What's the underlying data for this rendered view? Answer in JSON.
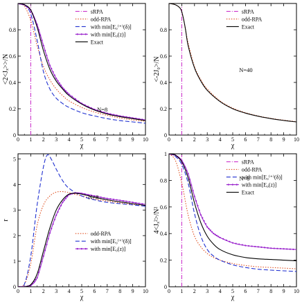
{
  "figure": {
    "background": "#ffffff"
  },
  "chart_data": [
    {
      "id": "tl",
      "type": "line",
      "ylabel": "<2<Jₓ>>/N",
      "xlabel": "χ",
      "xlim": [
        0,
        10
      ],
      "ylim": [
        0,
        1
      ],
      "xticks": [
        "0",
        "1",
        "2",
        "3",
        "4",
        "5",
        "6",
        "7",
        "8",
        "9",
        "10"
      ],
      "yticks": [
        "0",
        "0.2",
        "0.4",
        "0.6",
        "0.8"
      ],
      "ytick_values": [
        0,
        0.2,
        0.4,
        0.6,
        0.8
      ],
      "annotation": "N=8",
      "legend_position": "top-right",
      "series": [
        {
          "name": "sRPA",
          "color": "#cc33cc",
          "dash": "6,2,1,2",
          "marker": false,
          "x": [
            1,
            1
          ],
          "y": [
            0,
            0.99
          ]
        },
        {
          "name": "odd-RPA",
          "color": "#e05020",
          "dash": "1.5,2",
          "marker": false,
          "x": [
            0,
            0.5,
            1,
            1.5,
            2,
            2.5,
            3,
            3.5,
            4,
            5,
            6,
            7,
            8,
            9,
            10
          ],
          "y": [
            1,
            0.98,
            0.87,
            0.68,
            0.52,
            0.42,
            0.35,
            0.3,
            0.26,
            0.21,
            0.175,
            0.15,
            0.13,
            0.115,
            0.105
          ]
        },
        {
          "name": "with min[E₀⁽⁺⁾(δ)]",
          "color": "#2030d0",
          "dash": "6,3",
          "marker": false,
          "x": [
            0,
            0.5,
            1,
            1.5,
            2,
            2.5,
            3,
            3.5,
            4,
            5,
            6,
            7,
            8,
            9,
            10
          ],
          "y": [
            1,
            0.99,
            0.92,
            0.72,
            0.48,
            0.35,
            0.28,
            0.24,
            0.21,
            0.17,
            0.145,
            0.125,
            0.11,
            0.1,
            0.09
          ]
        },
        {
          "name": "with min[E₀(z)]",
          "color": "#9922cc",
          "dash": "",
          "marker": true,
          "x": [
            0,
            0.5,
            1,
            1.5,
            2,
            2.5,
            3,
            3.5,
            4,
            5,
            6,
            7,
            8,
            9,
            10
          ],
          "y": [
            1,
            0.99,
            0.95,
            0.84,
            0.68,
            0.53,
            0.43,
            0.36,
            0.31,
            0.24,
            0.195,
            0.165,
            0.145,
            0.13,
            0.115
          ]
        },
        {
          "name": "Exact",
          "color": "#000000",
          "dash": "",
          "marker": false,
          "x": [
            0,
            0.5,
            1,
            1.5,
            2,
            2.5,
            3,
            3.5,
            4,
            5,
            6,
            7,
            8,
            9,
            10
          ],
          "y": [
            1,
            0.99,
            0.95,
            0.82,
            0.64,
            0.5,
            0.41,
            0.35,
            0.3,
            0.235,
            0.19,
            0.16,
            0.14,
            0.125,
            0.11
          ]
        }
      ]
    },
    {
      "id": "tr",
      "type": "line",
      "ylabel": "<-2J₀>/N",
      "xlabel": "χ",
      "xlim": [
        0,
        10
      ],
      "ylim": [
        0,
        1
      ],
      "xticks": [
        "0",
        "1",
        "2",
        "3",
        "4",
        "5",
        "6",
        "7",
        "8",
        "9",
        "10"
      ],
      "yticks": [
        "0",
        "0.2",
        "0.4",
        "0.6",
        "0.8"
      ],
      "ytick_values": [
        0,
        0.2,
        0.4,
        0.6,
        0.8
      ],
      "annotation": "N=40",
      "legend_position": "top-right",
      "series": [
        {
          "name": "sRPA",
          "color": "#cc33cc",
          "dash": "6,2,1,2",
          "marker": false,
          "x": [
            1,
            1
          ],
          "y": [
            0,
            0.98
          ]
        },
        {
          "name": "odd-RPA",
          "color": "#e05020",
          "dash": "1.5,2",
          "marker": false,
          "x": [
            0,
            0.5,
            0.9,
            1.1,
            1.3,
            1.5,
            2,
            2.5,
            3,
            4,
            5,
            6,
            7,
            8,
            9,
            10
          ],
          "y": [
            1,
            0.99,
            0.96,
            0.9,
            0.8,
            0.7,
            0.52,
            0.42,
            0.35,
            0.26,
            0.205,
            0.17,
            0.145,
            0.127,
            0.113,
            0.102
          ]
        },
        {
          "name": "Exact",
          "color": "#000000",
          "dash": "",
          "marker": false,
          "x": [
            0,
            0.5,
            0.9,
            1.1,
            1.3,
            1.5,
            2,
            2.5,
            3,
            4,
            5,
            6,
            7,
            8,
            9,
            10
          ],
          "y": [
            1,
            0.99,
            0.96,
            0.9,
            0.8,
            0.68,
            0.51,
            0.41,
            0.34,
            0.255,
            0.2,
            0.167,
            0.143,
            0.125,
            0.111,
            0.1
          ]
        }
      ]
    },
    {
      "id": "bl",
      "type": "line",
      "ylabel": "r",
      "xlabel": "χ",
      "xlim": [
        0,
        10
      ],
      "ylim": [
        0,
        5.2
      ],
      "xticks": [
        "0",
        "1",
        "2",
        "3",
        "4",
        "5",
        "6",
        "7",
        "8",
        "9",
        "10"
      ],
      "yticks": [
        "0",
        "1",
        "2",
        "3",
        "4",
        "5"
      ],
      "ytick_values": [
        0,
        1,
        2,
        3,
        4,
        5
      ],
      "annotation": "N=8",
      "legend_position": "bottom-right",
      "series": [
        {
          "name": "odd-RPA",
          "color": "#e05020",
          "dash": "1.5,2",
          "marker": false,
          "x": [
            0,
            0.5,
            1,
            1.5,
            2,
            2.5,
            3,
            3.5,
            4,
            5,
            6,
            7,
            8,
            9,
            10
          ],
          "y": [
            0,
            0.1,
            0.9,
            2.4,
            3.2,
            3.55,
            3.7,
            3.72,
            3.68,
            3.55,
            3.43,
            3.35,
            3.28,
            3.22,
            3.18
          ]
        },
        {
          "name": "with min[E₀⁽⁺⁾(δ)]",
          "color": "#2030d0",
          "dash": "6,3",
          "marker": false,
          "x": [
            0,
            0.5,
            1,
            1.5,
            2,
            2.3,
            2.6,
            3,
            3.5,
            4,
            5,
            6,
            7,
            8,
            9,
            10
          ],
          "y": [
            0,
            0.1,
            1.2,
            3.2,
            4.7,
            5.15,
            5.0,
            4.6,
            4.15,
            3.85,
            3.55,
            3.4,
            3.3,
            3.25,
            3.2,
            3.15
          ]
        },
        {
          "name": "with min[E₀(z)]",
          "color": "#9922cc",
          "dash": "",
          "marker": true,
          "x": [
            0,
            0.5,
            1,
            1.5,
            2,
            2.5,
            3,
            3.5,
            4,
            4.5,
            5,
            6,
            7,
            8,
            9,
            10
          ],
          "y": [
            0,
            0,
            0.05,
            0.35,
            1.2,
            2.1,
            2.8,
            3.3,
            3.6,
            3.67,
            3.65,
            3.55,
            3.45,
            3.38,
            3.3,
            3.22
          ]
        },
        {
          "name": "Exact",
          "color": "#000000",
          "dash": "",
          "marker": false,
          "x": [
            0,
            0.5,
            1,
            1.5,
            2,
            2.5,
            3,
            3.5,
            4,
            4.5,
            5,
            6,
            7,
            8,
            9,
            10
          ],
          "y": [
            0,
            0,
            0.08,
            0.5,
            1.4,
            2.3,
            3.0,
            3.4,
            3.62,
            3.66,
            3.62,
            3.5,
            3.4,
            3.32,
            3.25,
            3.18
          ]
        }
      ]
    },
    {
      "id": "br",
      "type": "line",
      "ylabel": "4<Jₓ²>/N²",
      "xlabel": "χ",
      "xlim": [
        0,
        10
      ],
      "ylim": [
        0,
        1
      ],
      "xticks": [
        "0",
        "1",
        "2",
        "3",
        "4",
        "5",
        "6",
        "7",
        "8",
        "9",
        "10"
      ],
      "yticks": [
        "0",
        "0.2",
        "0.4",
        "0.6",
        "0.8",
        "1"
      ],
      "ytick_values": [
        0,
        0.2,
        0.4,
        0.6,
        0.8,
        1
      ],
      "annotation": "N=8",
      "legend_position": "top-right",
      "series": [
        {
          "name": "sRPA",
          "color": "#cc33cc",
          "dash": "6,2,1,2",
          "marker": false,
          "x": [
            1,
            1
          ],
          "y": [
            0,
            0.99
          ]
        },
        {
          "name": "odd-RPA",
          "color": "#e05020",
          "dash": "1.5,2",
          "marker": false,
          "x": [
            0,
            0.5,
            1,
            1.5,
            2,
            2.5,
            3,
            3.5,
            4,
            5,
            6,
            7,
            8,
            9,
            10
          ],
          "y": [
            1,
            0.95,
            0.78,
            0.54,
            0.38,
            0.3,
            0.25,
            0.22,
            0.2,
            0.175,
            0.16,
            0.15,
            0.145,
            0.14,
            0.135
          ]
        },
        {
          "name": "with min[E₀⁽⁺⁾(δ)]",
          "color": "#2030d0",
          "dash": "6,3",
          "marker": false,
          "x": [
            0,
            0.5,
            1,
            1.5,
            2,
            2.5,
            3,
            3.5,
            4,
            5,
            6,
            7,
            8,
            9,
            10
          ],
          "y": [
            1,
            0.98,
            0.92,
            0.78,
            0.55,
            0.38,
            0.28,
            0.23,
            0.2,
            0.165,
            0.145,
            0.132,
            0.125,
            0.12,
            0.115
          ]
        },
        {
          "name": "with min[E₀(z)]",
          "color": "#9922cc",
          "dash": "",
          "marker": true,
          "x": [
            0,
            0.5,
            1,
            1.5,
            2,
            2.5,
            3,
            3.5,
            4,
            5,
            6,
            7,
            8,
            9,
            10
          ],
          "y": [
            1,
            0.99,
            0.95,
            0.85,
            0.68,
            0.54,
            0.45,
            0.4,
            0.37,
            0.33,
            0.31,
            0.3,
            0.29,
            0.285,
            0.28
          ]
        },
        {
          "name": "Exact",
          "color": "#000000",
          "dash": "",
          "marker": false,
          "x": [
            0,
            0.5,
            1,
            1.5,
            2,
            2.5,
            3,
            3.5,
            4,
            5,
            6,
            7,
            8,
            9,
            10
          ],
          "y": [
            1,
            0.99,
            0.94,
            0.82,
            0.63,
            0.48,
            0.38,
            0.32,
            0.28,
            0.24,
            0.22,
            0.21,
            0.205,
            0.2,
            0.195
          ]
        }
      ]
    }
  ]
}
